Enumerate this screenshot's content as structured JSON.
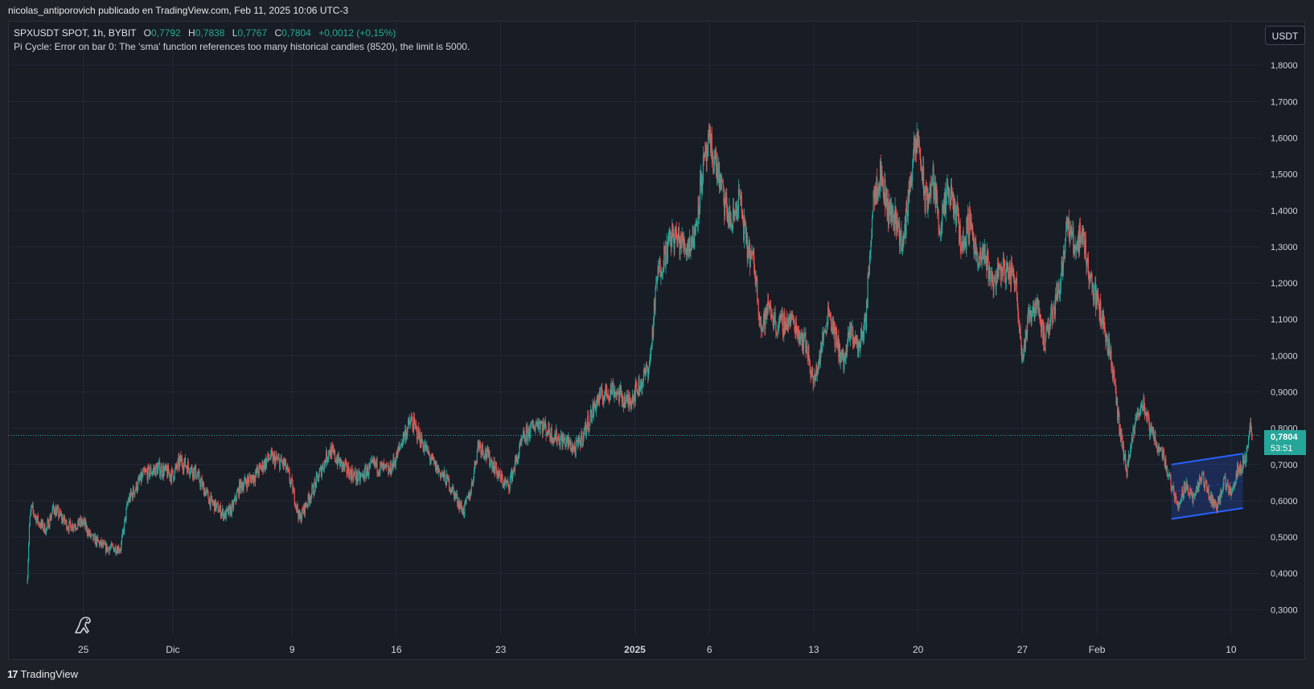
{
  "header": {
    "publisher_line": "nicolas_antiporovich publicado en TradingView.com, Feb 11, 2025 10:06 UTC-3"
  },
  "legend": {
    "symbol": "SPXUSDT SPOT, 1h, BYBIT",
    "open_label": "O",
    "open": "0,7792",
    "high_label": "H",
    "high": "0,7838",
    "low_label": "L",
    "low": "0,7767",
    "close_label": "C",
    "close": "0,7804",
    "change": "+0,0012 (+0,15%)",
    "error": "Pi Cycle: Error on bar 0: The 'sma' function references too many historical candles (8520), the limit is 5000."
  },
  "toolbar": {
    "currency": "USDT"
  },
  "price_tag": {
    "price": "0,7804",
    "countdown": "53:51"
  },
  "footer": {
    "brand_text": "TradingView",
    "logo_glyph": "17"
  },
  "colors": {
    "up": "#26a69a",
    "down": "#ef5350",
    "background": "#181c25",
    "grid": "#232732",
    "channel": "#2962ff",
    "price_tag": "#26a69a"
  },
  "icons": {
    "dino": "dino-icon",
    "logo": "tradingview-logo-icon"
  },
  "chart_data": {
    "type": "candlestick",
    "title": "",
    "ylim": [
      0.23,
      1.92
    ],
    "y_ticks": [
      "1,8000",
      "1,7000",
      "1,6000",
      "1,5000",
      "1,4000",
      "1,3000",
      "1,2000",
      "1,1000",
      "1,0000",
      "0,9000",
      "0,8000",
      "0,7000",
      "0,6000",
      "0,5000",
      "0,4000",
      "0,3000"
    ],
    "y_tick_values": [
      1.8,
      1.7,
      1.6,
      1.5,
      1.4,
      1.3,
      1.2,
      1.1,
      1.0,
      0.9,
      0.8,
      0.7,
      0.6,
      0.5,
      0.4,
      0.3
    ],
    "x_range": [
      "2024-11-20T00:00",
      "2025-02-12T00:00"
    ],
    "x_ticks": [
      {
        "label": "25",
        "date": "2024-11-25"
      },
      {
        "label": "Dic",
        "date": "2024-12-01"
      },
      {
        "label": "9",
        "date": "2024-12-09"
      },
      {
        "label": "16",
        "date": "2024-12-16"
      },
      {
        "label": "23",
        "date": "2024-12-23"
      },
      {
        "label": "2025",
        "date": "2025-01-01",
        "bold": true
      },
      {
        "label": "6",
        "date": "2025-01-06"
      },
      {
        "label": "13",
        "date": "2025-01-13"
      },
      {
        "label": "20",
        "date": "2025-01-20"
      },
      {
        "label": "27",
        "date": "2025-01-27"
      },
      {
        "label": "Feb",
        "date": "2025-02-01"
      },
      {
        "label": "10",
        "date": "2025-02-10"
      }
    ],
    "last_price": 0.7804,
    "price_path": [
      [
        "2024-11-21T06:00",
        0.4
      ],
      [
        "2024-11-21T09:00",
        0.53
      ],
      [
        "2024-11-21T12:00",
        0.58
      ],
      [
        "2024-11-22T00:00",
        0.54
      ],
      [
        "2024-11-22T12:00",
        0.52
      ],
      [
        "2024-11-23T00:00",
        0.58
      ],
      [
        "2024-11-24T00:00",
        0.53
      ],
      [
        "2024-11-25T00:00",
        0.54
      ],
      [
        "2024-11-25T12:00",
        0.5
      ],
      [
        "2024-11-26T12:00",
        0.47
      ],
      [
        "2024-11-27T12:00",
        0.47
      ],
      [
        "2024-11-28T00:00",
        0.6
      ],
      [
        "2024-11-29T00:00",
        0.67
      ],
      [
        "2024-11-30T00:00",
        0.69
      ],
      [
        "2024-12-01T00:00",
        0.67
      ],
      [
        "2024-12-01T12:00",
        0.71
      ],
      [
        "2024-12-02T12:00",
        0.68
      ],
      [
        "2024-12-03T12:00",
        0.6
      ],
      [
        "2024-12-04T12:00",
        0.56
      ],
      [
        "2024-12-05T00:00",
        0.58
      ],
      [
        "2024-12-05T12:00",
        0.64
      ],
      [
        "2024-12-06T12:00",
        0.67
      ],
      [
        "2024-12-07T12:00",
        0.72
      ],
      [
        "2024-12-08T12:00",
        0.7
      ],
      [
        "2024-12-09T00:00",
        0.64
      ],
      [
        "2024-12-09T12:00",
        0.55
      ],
      [
        "2024-12-10T12:00",
        0.64
      ],
      [
        "2024-12-11T12:00",
        0.74
      ],
      [
        "2024-12-12T12:00",
        0.69
      ],
      [
        "2024-12-13T12:00",
        0.66
      ],
      [
        "2024-12-14T12:00",
        0.7
      ],
      [
        "2024-12-15T12:00",
        0.68
      ],
      [
        "2024-12-16T00:00",
        0.72
      ],
      [
        "2024-12-16T12:00",
        0.78
      ],
      [
        "2024-12-17T00:00",
        0.82
      ],
      [
        "2024-12-17T12:00",
        0.78
      ],
      [
        "2024-12-18T12:00",
        0.7
      ],
      [
        "2024-12-19T12:00",
        0.65
      ],
      [
        "2024-12-20T12:00",
        0.57
      ],
      [
        "2024-12-21T00:00",
        0.63
      ],
      [
        "2024-12-21T12:00",
        0.76
      ],
      [
        "2024-12-22T12:00",
        0.7
      ],
      [
        "2024-12-23T00:00",
        0.66
      ],
      [
        "2024-12-23T12:00",
        0.64
      ],
      [
        "2024-12-24T12:00",
        0.77
      ],
      [
        "2024-12-25T12:00",
        0.82
      ],
      [
        "2024-12-26T12:00",
        0.78
      ],
      [
        "2024-12-27T12:00",
        0.76
      ],
      [
        "2024-12-28T00:00",
        0.74
      ],
      [
        "2024-12-28T12:00",
        0.78
      ],
      [
        "2024-12-29T12:00",
        0.88
      ],
      [
        "2024-12-30T12:00",
        0.91
      ],
      [
        "2024-12-31T12:00",
        0.87
      ],
      [
        "2025-01-01T00:00",
        0.9
      ],
      [
        "2025-01-01T12:00",
        0.93
      ],
      [
        "2025-01-02T00:00",
        0.98
      ],
      [
        "2025-01-02T12:00",
        1.22
      ],
      [
        "2025-01-03T00:00",
        1.28
      ],
      [
        "2025-01-03T12:00",
        1.33
      ],
      [
        "2025-01-04T12:00",
        1.3
      ],
      [
        "2025-01-05T00:00",
        1.33
      ],
      [
        "2025-01-05T12:00",
        1.5
      ],
      [
        "2025-01-06T00:00",
        1.58
      ],
      [
        "2025-01-06T12:00",
        1.52
      ],
      [
        "2025-01-07T00:00",
        1.42
      ],
      [
        "2025-01-07T12:00",
        1.36
      ],
      [
        "2025-01-08T00:00",
        1.44
      ],
      [
        "2025-01-08T12:00",
        1.3
      ],
      [
        "2025-01-09T00:00",
        1.25
      ],
      [
        "2025-01-09T12:00",
        1.07
      ],
      [
        "2025-01-10T00:00",
        1.14
      ],
      [
        "2025-01-10T12:00",
        1.08
      ],
      [
        "2025-01-11T12:00",
        1.1
      ],
      [
        "2025-01-12T12:00",
        1.03
      ],
      [
        "2025-01-13T00:00",
        0.92
      ],
      [
        "2025-01-13T12:00",
        1.02
      ],
      [
        "2025-01-14T00:00",
        1.13
      ],
      [
        "2025-01-14T12:00",
        1.04
      ],
      [
        "2025-01-15T00:00",
        0.98
      ],
      [
        "2025-01-15T12:00",
        1.07
      ],
      [
        "2025-01-16T00:00",
        1.02
      ],
      [
        "2025-01-16T12:00",
        1.1
      ],
      [
        "2025-01-17T00:00",
        1.45
      ],
      [
        "2025-01-17T12:00",
        1.5
      ],
      [
        "2025-01-18T00:00",
        1.4
      ],
      [
        "2025-01-18T12:00",
        1.38
      ],
      [
        "2025-01-19T00:00",
        1.3
      ],
      [
        "2025-01-19T12:00",
        1.5
      ],
      [
        "2025-01-20T00:00",
        1.6
      ],
      [
        "2025-01-20T12:00",
        1.42
      ],
      [
        "2025-01-21T00:00",
        1.48
      ],
      [
        "2025-01-21T12:00",
        1.35
      ],
      [
        "2025-01-22T00:00",
        1.45
      ],
      [
        "2025-01-22T12:00",
        1.4
      ],
      [
        "2025-01-23T00:00",
        1.3
      ],
      [
        "2025-01-23T12:00",
        1.38
      ],
      [
        "2025-01-24T00:00",
        1.25
      ],
      [
        "2025-01-24T12:00",
        1.28
      ],
      [
        "2025-01-25T00:00",
        1.2
      ],
      [
        "2025-01-25T12:00",
        1.24
      ],
      [
        "2025-01-26T12:00",
        1.22
      ],
      [
        "2025-01-27T00:00",
        1.0
      ],
      [
        "2025-01-27T12:00",
        1.12
      ],
      [
        "2025-01-28T00:00",
        1.15
      ],
      [
        "2025-01-28T12:00",
        1.03
      ],
      [
        "2025-01-29T00:00",
        1.12
      ],
      [
        "2025-01-29T12:00",
        1.2
      ],
      [
        "2025-01-30T00:00",
        1.36
      ],
      [
        "2025-01-30T12:00",
        1.3
      ],
      [
        "2025-01-31T00:00",
        1.34
      ],
      [
        "2025-01-31T12:00",
        1.22
      ],
      [
        "2025-02-01T00:00",
        1.15
      ],
      [
        "2025-02-01T12:00",
        1.08
      ],
      [
        "2025-02-02T00:00",
        0.98
      ],
      [
        "2025-02-02T12:00",
        0.8
      ],
      [
        "2025-02-03T00:00",
        0.68
      ],
      [
        "2025-02-03T12:00",
        0.8
      ],
      [
        "2025-02-04T00:00",
        0.88
      ],
      [
        "2025-02-04T12:00",
        0.8
      ],
      [
        "2025-02-05T00:00",
        0.76
      ],
      [
        "2025-02-05T12:00",
        0.72
      ],
      [
        "2025-02-06T00:00",
        0.64
      ],
      [
        "2025-02-06T12:00",
        0.59
      ],
      [
        "2025-02-07T00:00",
        0.65
      ],
      [
        "2025-02-07T12:00",
        0.6
      ],
      [
        "2025-02-08T00:00",
        0.67
      ],
      [
        "2025-02-08T12:00",
        0.62
      ],
      [
        "2025-02-09T00:00",
        0.58
      ],
      [
        "2025-02-09T12:00",
        0.65
      ],
      [
        "2025-02-10T00:00",
        0.63
      ],
      [
        "2025-02-10T12:00",
        0.69
      ],
      [
        "2025-02-11T00:00",
        0.72
      ],
      [
        "2025-02-11T06:00",
        0.8
      ],
      [
        "2025-02-11T10:00",
        0.78
      ]
    ],
    "channel": {
      "upper": [
        [
          "2025-02-06T00:00",
          0.7
        ],
        [
          "2025-02-10T19:00",
          0.73
        ]
      ],
      "lower": [
        [
          "2025-02-06T00:00",
          0.55
        ],
        [
          "2025-02-10T19:00",
          0.58
        ]
      ]
    }
  }
}
